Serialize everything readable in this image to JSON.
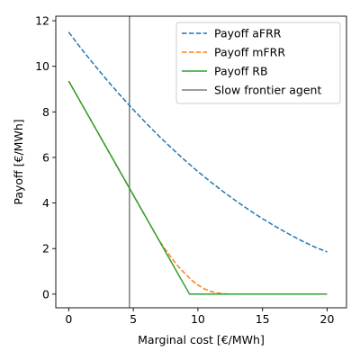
{
  "chart_data": {
    "type": "line",
    "title": "",
    "xlabel": "Marginal cost [€/MWh]",
    "ylabel": "Payoff [€/MWh]",
    "xlim": [
      -1,
      21.5
    ],
    "ylim": [
      -0.6,
      12.2
    ],
    "xticks": [
      0,
      5,
      10,
      15,
      20
    ],
    "yticks": [
      0,
      2,
      4,
      6,
      8,
      10,
      12
    ],
    "grid": false,
    "legend_position": "top-right",
    "series": [
      {
        "name": "Payoff aFRR",
        "color": "#1f77b4",
        "style": "dashed",
        "x": [
          0,
          1,
          2,
          3,
          4,
          5,
          6,
          7,
          8,
          9,
          10,
          11,
          12,
          13,
          14,
          15,
          16,
          17,
          18,
          19,
          20
        ],
        "y": [
          11.5,
          10.75,
          10.05,
          9.37,
          8.72,
          8.1,
          7.5,
          6.93,
          6.39,
          5.87,
          5.38,
          4.92,
          4.48,
          4.07,
          3.68,
          3.31,
          2.97,
          2.65,
          2.35,
          2.08,
          1.85
        ]
      },
      {
        "name": "Payoff mFRR",
        "color": "#ff7f0e",
        "style": "dashed",
        "x": [
          0,
          1,
          2,
          3,
          4,
          5,
          6,
          7,
          8,
          8.5,
          9,
          9.5,
          10,
          10.5,
          11,
          11.5,
          12,
          12.5,
          13,
          14,
          15,
          16,
          17,
          18,
          19,
          20
        ],
        "y": [
          9.35,
          8.35,
          7.35,
          6.35,
          5.35,
          4.35,
          3.35,
          2.35,
          1.55,
          1.2,
          0.9,
          0.62,
          0.4,
          0.23,
          0.12,
          0.05,
          0.015,
          0.005,
          0,
          0,
          0,
          0,
          0,
          0,
          0,
          0
        ]
      },
      {
        "name": "Payoff RB",
        "color": "#2ca02c",
        "style": "solid",
        "x": [
          0,
          9.35,
          20
        ],
        "y": [
          9.35,
          0,
          0
        ]
      }
    ],
    "vlines": [
      {
        "name": "Slow frontier agent",
        "color": "#7f7f7f",
        "x": 4.7
      }
    ]
  }
}
